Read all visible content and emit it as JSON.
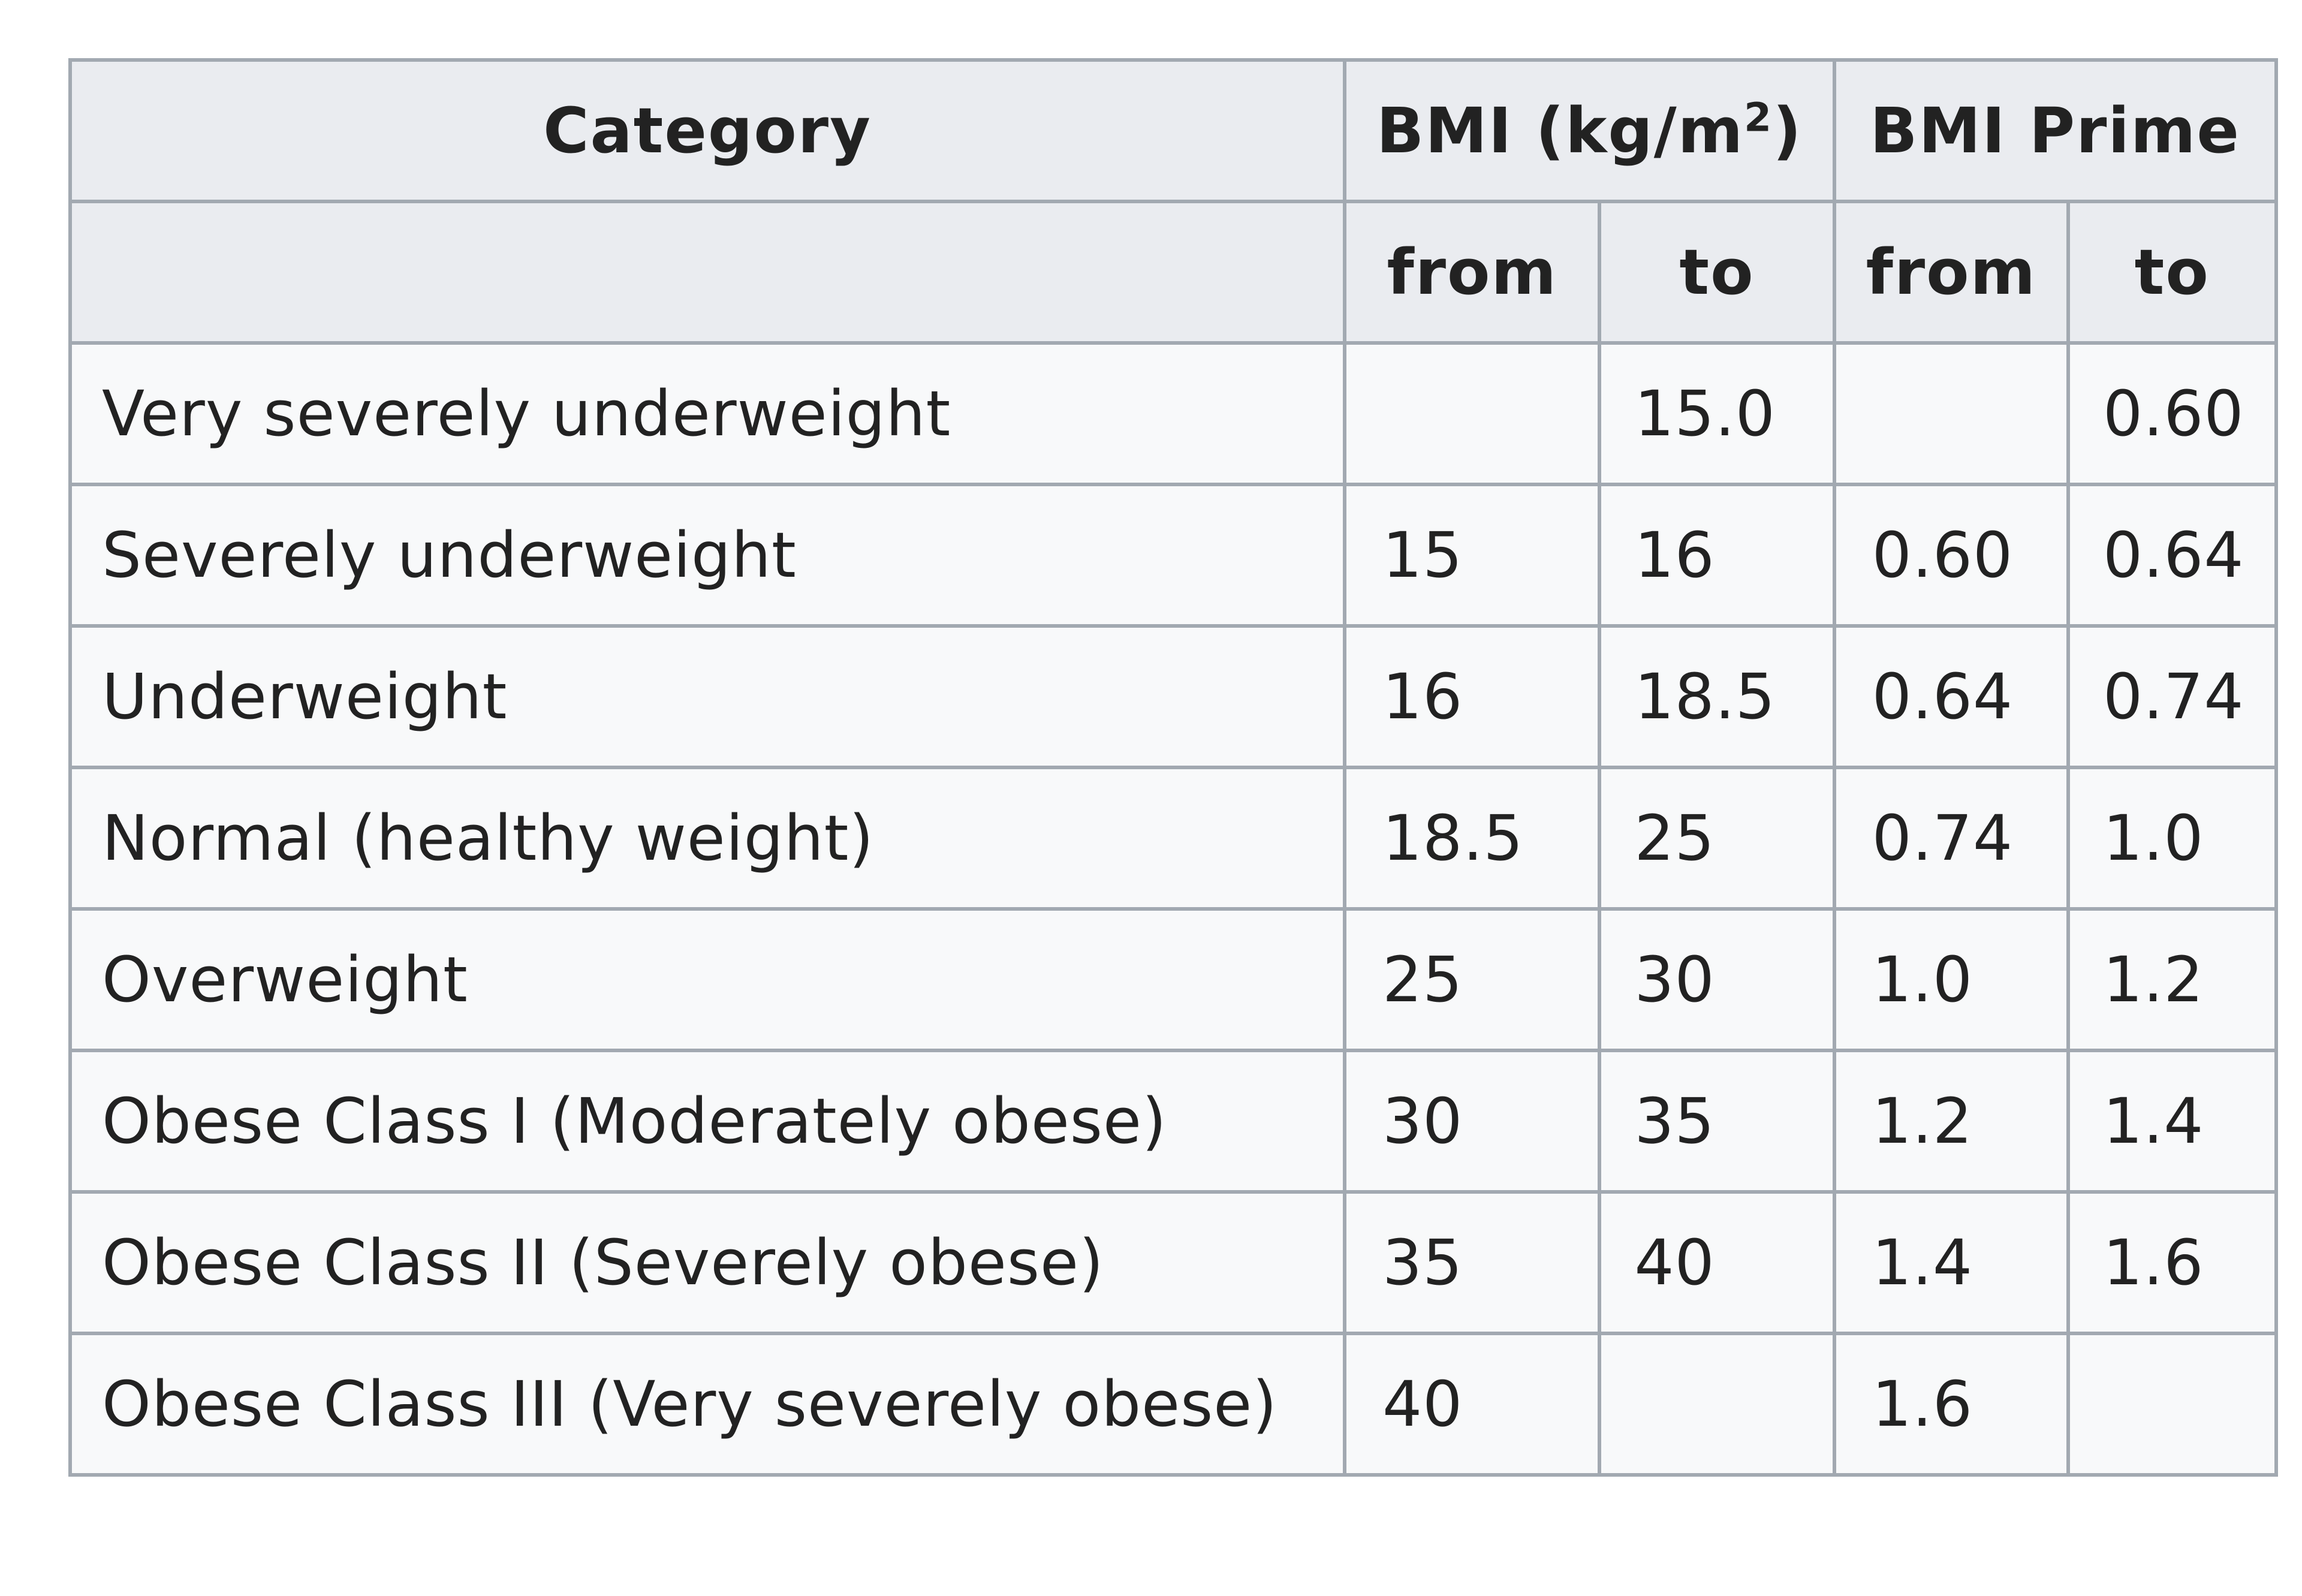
{
  "table": {
    "header": {
      "category": "Category",
      "bmi_prefix": "BMI (kg/m",
      "bmi_sup": "2",
      "bmi_suffix": ")",
      "prime": "BMI Prime",
      "from": "from",
      "to": "to"
    },
    "rows": [
      {
        "category": "Very severely underweight",
        "bmi_from": "",
        "bmi_to": "15.0",
        "prime_from": "",
        "prime_to": "0.60"
      },
      {
        "category": "Severely underweight",
        "bmi_from": "15",
        "bmi_to": "16",
        "prime_from": "0.60",
        "prime_to": "0.64"
      },
      {
        "category": "Underweight",
        "bmi_from": "16",
        "bmi_to": "18.5",
        "prime_from": "0.64",
        "prime_to": "0.74"
      },
      {
        "category": "Normal (healthy weight)",
        "bmi_from": "18.5",
        "bmi_to": "25",
        "prime_from": "0.74",
        "prime_to": "1.0"
      },
      {
        "category": "Overweight",
        "bmi_from": "25",
        "bmi_to": "30",
        "prime_from": "1.0",
        "prime_to": "1.2"
      },
      {
        "category": "Obese Class I (Moderately obese)",
        "bmi_from": "30",
        "bmi_to": "35",
        "prime_from": "1.2",
        "prime_to": "1.4"
      },
      {
        "category": "Obese Class II (Severely obese)",
        "bmi_from": "35",
        "bmi_to": "40",
        "prime_from": "1.4",
        "prime_to": "1.6"
      },
      {
        "category": "Obese Class III (Very severely obese)",
        "bmi_from": "40",
        "bmi_to": "",
        "prime_from": "1.6",
        "prime_to": ""
      }
    ]
  }
}
